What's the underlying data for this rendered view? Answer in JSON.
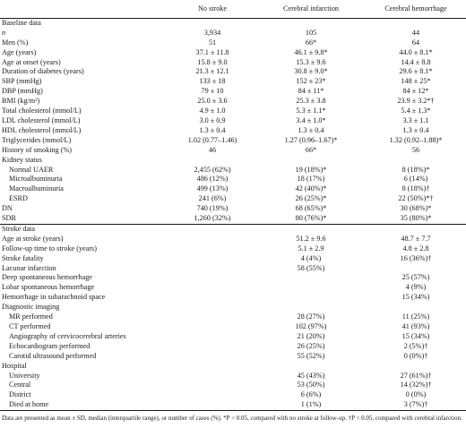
{
  "columns": {
    "label": "",
    "no_stroke": "No stroke",
    "cerebral_infarction": "Cerebral infarction",
    "cerebral_hemorrhage": "Cerebral hemorrhage"
  },
  "sections": {
    "baseline": "Baseline data",
    "kidney": "Kidney status",
    "stroke": "Stroke data",
    "imaging": "Diagnostic imaging",
    "hospital": "Hospital"
  },
  "rows": [
    {
      "label": "n",
      "indent": 0,
      "italic": true,
      "v": [
        "3,934",
        "105",
        "44"
      ]
    },
    {
      "label": "Men (%)",
      "indent": 0,
      "v": [
        "51",
        "66*",
        "64"
      ]
    },
    {
      "label": "Age (years)",
      "indent": 0,
      "v": [
        "37.1 ± 11.8",
        "46.1 ± 9.8*",
        "44.0 ± 8.1*"
      ]
    },
    {
      "label": "Age at onset (years)",
      "indent": 0,
      "v": [
        "15.8 ± 9.0",
        "15.3 ± 9.6",
        "14.4 ± 8.8"
      ]
    },
    {
      "label": "Duration of diabetes (years)",
      "indent": 0,
      "v": [
        "21.3 ± 12.1",
        "30.8 ± 9.0*",
        "29.6 ± 8.1*"
      ]
    },
    {
      "label": "SBP (mmHg)",
      "indent": 0,
      "v": [
        "133 ± 18",
        "152 ± 23*",
        "148 ± 25*"
      ]
    },
    {
      "label": "DBP (mmHg)",
      "indent": 0,
      "v": [
        "79 ± 10",
        "84 ± 11*",
        "84 ± 12*"
      ]
    },
    {
      "label": "BMI (kg/m²)",
      "indent": 0,
      "v": [
        "25.0 ± 3.6",
        "25.3 ± 3.8",
        "23.9 ± 3.2*†"
      ]
    },
    {
      "label": "Total cholesterol (mmol/L)",
      "indent": 0,
      "v": [
        "4.9 ± 1.0",
        "5.3 ± 1.1*",
        "5.4 ± 1.3*"
      ]
    },
    {
      "label": "LDL cholesterol (mmol/L)",
      "indent": 0,
      "v": [
        "3.0 ± 0.9",
        "3.4 ± 1.0*",
        "3.3 ± 1.1"
      ]
    },
    {
      "label": "HDL cholesterol (mmol/L)",
      "indent": 0,
      "v": [
        "1.3 ± 0.4",
        "1.3 ± 0.4",
        "1.3 ± 0.4"
      ]
    },
    {
      "label": "Triglycerides (mmol/L)",
      "indent": 0,
      "v": [
        "1.02 (0.77–1.46)",
        "1.27 (0.96–1.67)*",
        "1.32 (0.92–1.88)*"
      ]
    },
    {
      "label": "History of smoking (%)",
      "indent": 0,
      "v": [
        "46",
        "66*",
        "56"
      ]
    },
    {
      "label": "",
      "section": "kidney"
    },
    {
      "label": "Normal UAER",
      "indent": 1,
      "v": [
        "2,455 (62%)",
        "19 (18%)*",
        "8 (18%)*"
      ]
    },
    {
      "label": "Microalbuminuria",
      "indent": 1,
      "v": [
        "486 (12%)",
        "18 (17%)",
        "6 (14%)"
      ]
    },
    {
      "label": "Macroalbuminuria",
      "indent": 1,
      "v": [
        "499 (13%)",
        "42 (40%)*",
        "8 (18%)†"
      ]
    },
    {
      "label": "ESRD",
      "indent": 1,
      "v": [
        "241 (6%)",
        "26 (25%)*",
        "22 (50%)*†"
      ]
    },
    {
      "label": "DN",
      "indent": 0,
      "v": [
        "740 (19%)",
        "68 (65%)*",
        "30 (68%)*"
      ]
    },
    {
      "label": "SDR",
      "indent": 0,
      "v": [
        "1,260 (32%)",
        "80 (76%)*",
        "35 (80%)*"
      ]
    }
  ],
  "stroke_rows": [
    {
      "label": "Age at stroke (years)",
      "indent": 0,
      "v": [
        "",
        "51.2 ± 9.6",
        "48.7 ± 7.7"
      ]
    },
    {
      "label": "Follow-up time to stroke (years)",
      "indent": 0,
      "v": [
        "",
        "5.1 ± 2.9",
        "4.8 ± 2.8"
      ]
    },
    {
      "label": "Stroke fatality",
      "indent": 0,
      "v": [
        "",
        "4 (4%)",
        "16 (36%)†"
      ]
    },
    {
      "label": "Lacunar infarction",
      "indent": 0,
      "v": [
        "",
        "58 (55%)",
        ""
      ]
    },
    {
      "label": "Deep spontaneous hemorrhage",
      "indent": 0,
      "v": [
        "",
        "",
        "25 (57%)"
      ]
    },
    {
      "label": "Lobar spontaneous hemorrhage",
      "indent": 0,
      "v": [
        "",
        "",
        "4 (9%)"
      ]
    },
    {
      "label": "Hemorrhage in subarachnoid space",
      "indent": 0,
      "v": [
        "",
        "",
        "15 (34%)"
      ]
    }
  ],
  "imaging_rows": [
    {
      "label": "MR performed",
      "indent": 1,
      "v": [
        "",
        "28 (27%)",
        "11 (25%)"
      ]
    },
    {
      "label": "CT performed",
      "indent": 1,
      "v": [
        "",
        "102 (97%)",
        "41 (93%)"
      ]
    },
    {
      "label": "Angiography of cervicocerebral arteries",
      "indent": 1,
      "v": [
        "",
        "21 (20%)",
        "15 (34%)"
      ]
    },
    {
      "label": "Echocardiogram performed",
      "indent": 1,
      "v": [
        "",
        "26 (25%)",
        "2 (5%)†"
      ]
    },
    {
      "label": "Carotid ultrasound performed",
      "indent": 1,
      "v": [
        "",
        "55 (52%)",
        "0 (0%)†"
      ]
    }
  ],
  "hospital_rows": [
    {
      "label": "University",
      "indent": 1,
      "v": [
        "",
        "45 (43%)",
        "27 (61%)†"
      ]
    },
    {
      "label": "Central",
      "indent": 1,
      "v": [
        "",
        "53 (50%)",
        "14 (32%)†"
      ]
    },
    {
      "label": "District",
      "indent": 1,
      "v": [
        "",
        "6 (6%)",
        "0 (0%)"
      ]
    },
    {
      "label": "Died at home",
      "indent": 1,
      "v": [
        "",
        "1 (1%)",
        "3 (7%)†"
      ]
    }
  ],
  "footnote": "Data are presented as mean ± SD, median (interquartile range), or number of cases (%). *P < 0.05, compared with no stroke at follow-up. †P < 0.05, compared with cerebral infarction."
}
